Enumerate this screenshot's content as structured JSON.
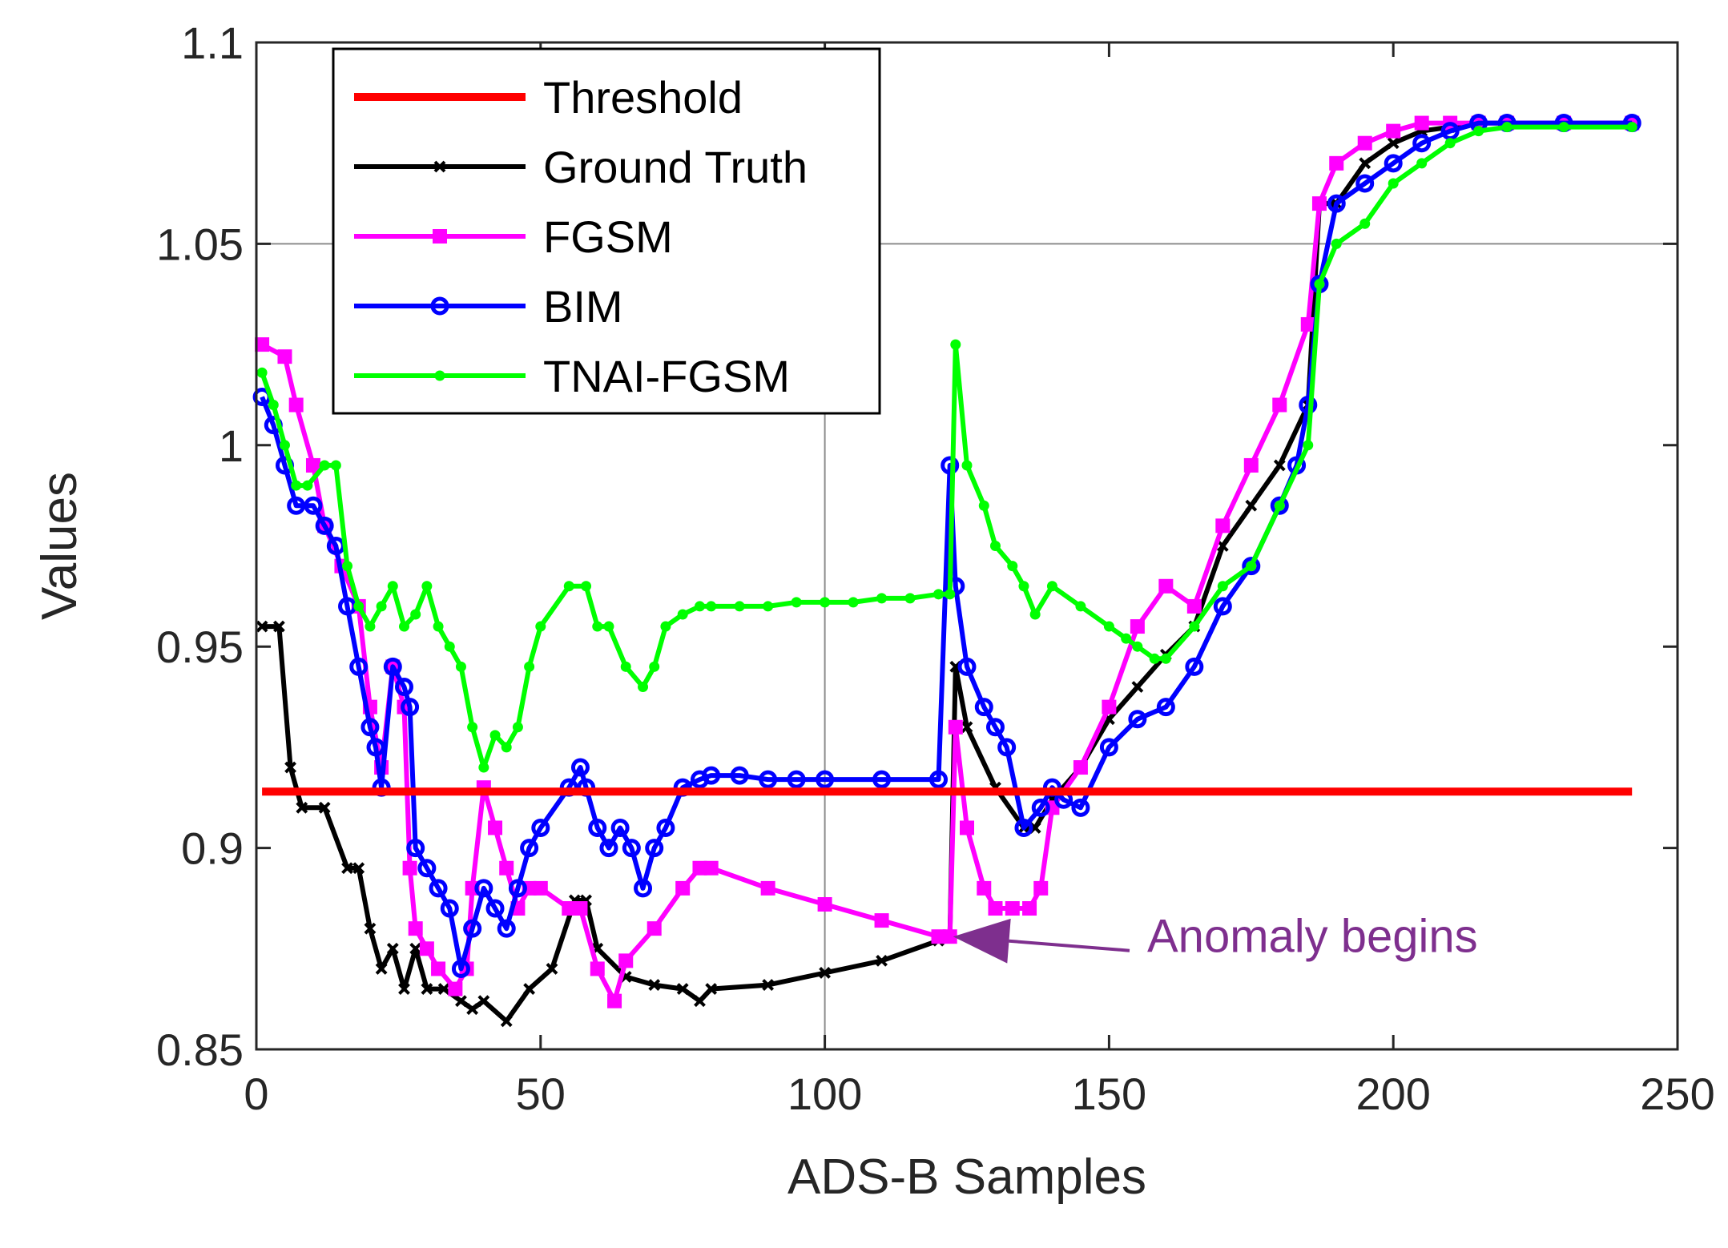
{
  "chart_data": {
    "type": "line",
    "title": "",
    "xlabel": "ADS-B Samples",
    "ylabel": "Values",
    "xlim": [
      0,
      250
    ],
    "ylim": [
      0.85,
      1.1
    ],
    "xticks": [
      0,
      50,
      100,
      150,
      200,
      250
    ],
    "yticks": [
      0.85,
      0.9,
      0.95,
      1,
      1.05,
      1.1
    ],
    "xtick_labels": [
      "0",
      "50",
      "100",
      "150",
      "200",
      "250"
    ],
    "ytick_labels": [
      "0.85",
      "0.9",
      "0.95",
      "1",
      "1.05",
      "1.1"
    ],
    "gridlines": {
      "x": [
        100
      ],
      "y": [
        1.05
      ]
    },
    "legend_position": "top-left",
    "series": [
      {
        "name": "Threshold",
        "color": "#ff0000",
        "marker": "none",
        "x": [
          1,
          242
        ],
        "y": [
          0.914,
          0.914
        ]
      },
      {
        "name": "Ground Truth",
        "color": "#000000",
        "marker": "x",
        "x": [
          1,
          4,
          6,
          8,
          12,
          16,
          18,
          20,
          22,
          24,
          26,
          28,
          30,
          33,
          36,
          38,
          40,
          44,
          48,
          52,
          56,
          58,
          60,
          65,
          70,
          75,
          78,
          80,
          90,
          100,
          110,
          120,
          122,
          123,
          125,
          130,
          135,
          137,
          140,
          145,
          150,
          155,
          160,
          165,
          170,
          175,
          180,
          185,
          187,
          190,
          195,
          200,
          205,
          210,
          215,
          220,
          230,
          242
        ],
        "y": [
          0.955,
          0.955,
          0.92,
          0.91,
          0.91,
          0.895,
          0.895,
          0.88,
          0.87,
          0.875,
          0.865,
          0.875,
          0.865,
          0.865,
          0.862,
          0.86,
          0.862,
          0.857,
          0.865,
          0.87,
          0.887,
          0.887,
          0.875,
          0.868,
          0.866,
          0.865,
          0.862,
          0.865,
          0.866,
          0.869,
          0.872,
          0.877,
          0.878,
          0.945,
          0.93,
          0.915,
          0.905,
          0.905,
          0.912,
          0.92,
          0.932,
          0.94,
          0.948,
          0.955,
          0.975,
          0.985,
          0.995,
          1.01,
          1.06,
          1.06,
          1.07,
          1.075,
          1.078,
          1.079,
          1.08,
          1.08,
          1.08,
          1.08
        ],
        "labels": []
      },
      {
        "name": "FGSM",
        "color": "#ff00ff",
        "marker": "square",
        "x": [
          1,
          5,
          7,
          10,
          12,
          15,
          18,
          20,
          22,
          24,
          26,
          27,
          28,
          30,
          32,
          35,
          37,
          38,
          40,
          42,
          44,
          46,
          48,
          50,
          55,
          57,
          60,
          63,
          65,
          70,
          75,
          78,
          80,
          90,
          100,
          110,
          120,
          122,
          123,
          125,
          128,
          130,
          133,
          136,
          138,
          140,
          145,
          150,
          155,
          160,
          165,
          170,
          175,
          180,
          185,
          187,
          190,
          195,
          200,
          205,
          210,
          215,
          220,
          230,
          242
        ],
        "y": [
          1.025,
          1.022,
          1.01,
          0.995,
          0.98,
          0.97,
          0.96,
          0.935,
          0.92,
          0.945,
          0.935,
          0.895,
          0.88,
          0.875,
          0.87,
          0.865,
          0.87,
          0.89,
          0.915,
          0.905,
          0.895,
          0.885,
          0.89,
          0.89,
          0.885,
          0.885,
          0.87,
          0.862,
          0.872,
          0.88,
          0.89,
          0.895,
          0.895,
          0.89,
          0.886,
          0.882,
          0.878,
          0.878,
          0.93,
          0.905,
          0.89,
          0.885,
          0.885,
          0.885,
          0.89,
          0.91,
          0.92,
          0.935,
          0.955,
          0.965,
          0.96,
          0.98,
          0.995,
          1.01,
          1.03,
          1.06,
          1.07,
          1.075,
          1.078,
          1.08,
          1.08,
          1.08,
          1.08,
          1.08,
          1.08
        ],
        "labels": []
      },
      {
        "name": "BIM",
        "color": "#0000ff",
        "marker": "circle",
        "x": [
          1,
          3,
          5,
          7,
          10,
          12,
          14,
          16,
          18,
          20,
          21,
          22,
          24,
          26,
          27,
          28,
          30,
          32,
          34,
          36,
          38,
          40,
          42,
          44,
          46,
          48,
          50,
          55,
          57,
          58,
          60,
          62,
          64,
          66,
          68,
          70,
          72,
          75,
          78,
          80,
          85,
          90,
          95,
          100,
          110,
          120,
          122,
          123,
          125,
          128,
          130,
          132,
          135,
          138,
          140,
          142,
          145,
          150,
          155,
          160,
          165,
          170,
          175,
          180,
          183,
          185,
          187,
          190,
          195,
          200,
          205,
          210,
          215,
          220,
          230,
          242
        ],
        "y": [
          1.012,
          1.005,
          0.995,
          0.985,
          0.985,
          0.98,
          0.975,
          0.96,
          0.945,
          0.93,
          0.925,
          0.915,
          0.945,
          0.94,
          0.935,
          0.9,
          0.895,
          0.89,
          0.885,
          0.87,
          0.88,
          0.89,
          0.885,
          0.88,
          0.89,
          0.9,
          0.905,
          0.915,
          0.92,
          0.915,
          0.905,
          0.9,
          0.905,
          0.9,
          0.89,
          0.9,
          0.905,
          0.915,
          0.917,
          0.918,
          0.918,
          0.917,
          0.917,
          0.917,
          0.917,
          0.917,
          0.995,
          0.965,
          0.945,
          0.935,
          0.93,
          0.925,
          0.905,
          0.91,
          0.915,
          0.912,
          0.91,
          0.925,
          0.932,
          0.935,
          0.945,
          0.96,
          0.97,
          0.985,
          0.995,
          1.01,
          1.04,
          1.06,
          1.065,
          1.07,
          1.075,
          1.078,
          1.08,
          1.08,
          1.08,
          1.08
        ],
        "labels": []
      },
      {
        "name": "TNAI-FGSM",
        "color": "#00ff00",
        "marker": "dot",
        "x": [
          1,
          3,
          5,
          7,
          9,
          12,
          14,
          16,
          18,
          20,
          22,
          24,
          26,
          28,
          30,
          32,
          34,
          36,
          38,
          40,
          42,
          44,
          46,
          48,
          50,
          55,
          58,
          60,
          62,
          65,
          68,
          70,
          72,
          75,
          78,
          80,
          85,
          90,
          95,
          100,
          105,
          110,
          115,
          120,
          122,
          123,
          125,
          128,
          130,
          133,
          135,
          137,
          140,
          145,
          150,
          153,
          155,
          158,
          160,
          165,
          170,
          175,
          180,
          185,
          187,
          190,
          195,
          200,
          205,
          210,
          215,
          220,
          230,
          242
        ],
        "y": [
          1.018,
          1.01,
          1.0,
          0.99,
          0.99,
          0.995,
          0.995,
          0.97,
          0.96,
          0.955,
          0.96,
          0.965,
          0.955,
          0.958,
          0.965,
          0.955,
          0.95,
          0.945,
          0.93,
          0.92,
          0.928,
          0.925,
          0.93,
          0.945,
          0.955,
          0.965,
          0.965,
          0.955,
          0.955,
          0.945,
          0.94,
          0.945,
          0.955,
          0.958,
          0.96,
          0.96,
          0.96,
          0.96,
          0.961,
          0.961,
          0.961,
          0.962,
          0.962,
          0.963,
          0.963,
          1.025,
          0.995,
          0.985,
          0.975,
          0.97,
          0.965,
          0.958,
          0.965,
          0.96,
          0.955,
          0.952,
          0.95,
          0.947,
          0.947,
          0.955,
          0.965,
          0.97,
          0.985,
          1.0,
          1.04,
          1.05,
          1.055,
          1.065,
          1.07,
          1.075,
          1.078,
          1.079,
          1.079,
          1.079
        ],
        "labels": []
      }
    ],
    "annotations": [
      {
        "text": "Anomaly begins",
        "color": "#7e2f8e",
        "arrow_to": {
          "x": 122,
          "y": 0.878
        },
        "text_anchor": {
          "x": 155,
          "y": 0.8785
        }
      }
    ]
  }
}
